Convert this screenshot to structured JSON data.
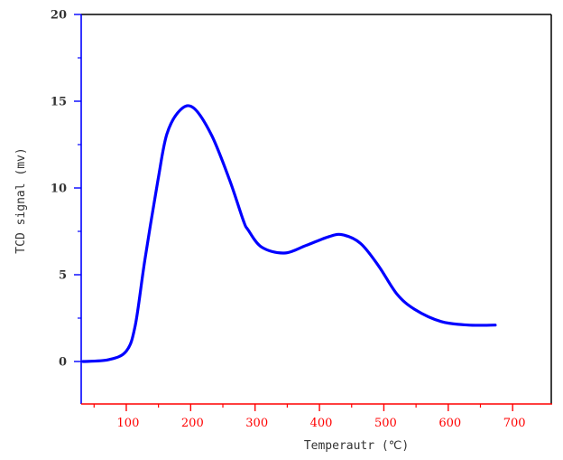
{
  "chart_data": {
    "type": "line",
    "title": "",
    "xlabel": "Temperautr (℃)",
    "ylabel": "TCD signal (mv)",
    "xlim": [
      30,
      760
    ],
    "ylim": [
      -2.5,
      20
    ],
    "grid": false,
    "legend": null,
    "x_ticks": [
      100,
      200,
      300,
      400,
      500,
      600,
      700
    ],
    "x_minor_ticks": [
      50,
      150,
      250,
      350,
      450,
      550,
      650
    ],
    "y_ticks": [
      0,
      5,
      10,
      15,
      20
    ],
    "y_minor_ticks": [
      2.5,
      7.5,
      12.5,
      17.5
    ],
    "series": [
      {
        "name": "TCD signal",
        "color": "#0000ff",
        "x": [
          33,
          72,
          100,
          114,
          129,
          149,
          163,
          184,
          205,
          233,
          261,
          282,
          289,
          310,
          345,
          380,
          415,
          436,
          464,
          492,
          520,
          548,
          589,
          631,
          673
        ],
        "y": [
          0.0,
          0.1,
          0.6,
          2.1,
          5.9,
          10.4,
          13.1,
          14.5,
          14.6,
          13.0,
          10.4,
          8.1,
          7.6,
          6.6,
          6.25,
          6.7,
          7.2,
          7.3,
          6.8,
          5.5,
          3.9,
          3.0,
          2.3,
          2.1,
          2.1
        ]
      }
    ]
  },
  "colors": {
    "curve": "#0000ff",
    "y_axis": "#0000ff",
    "x_axis": "#ff0000",
    "frame": "#000000",
    "y_tick_text": "#333333",
    "x_tick_text": "#ff0000"
  }
}
